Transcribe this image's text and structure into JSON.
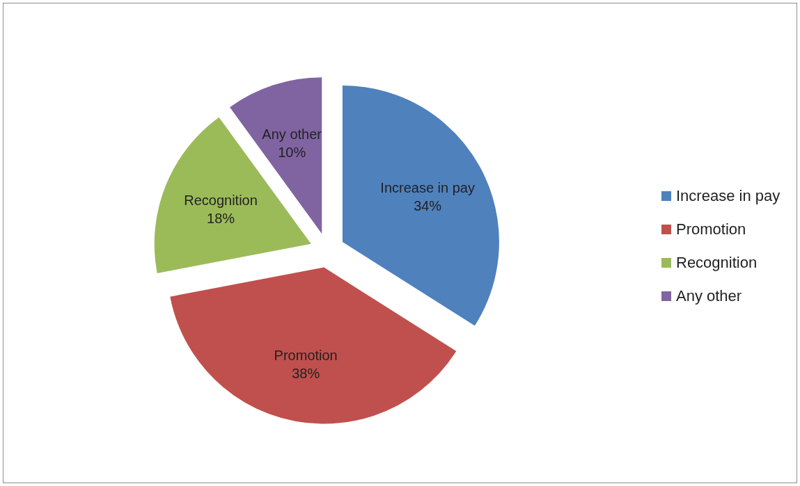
{
  "chart_data": {
    "type": "pie",
    "categories": [
      "Increase in pay",
      "Promotion",
      "Recognition",
      "Any other"
    ],
    "values": [
      34,
      38,
      18,
      10
    ],
    "value_labels": [
      "34%",
      "38%",
      "18%",
      "10%"
    ],
    "colors": [
      "#4f81bd",
      "#c0504d",
      "#9bbb59",
      "#8064a2"
    ],
    "legend": "right"
  }
}
